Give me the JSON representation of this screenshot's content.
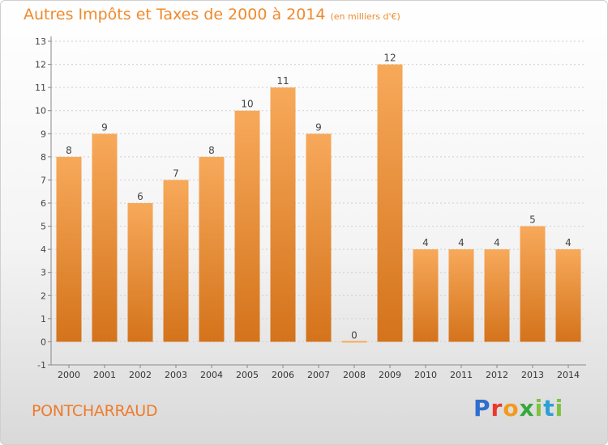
{
  "title": {
    "main": "Autres Impôts et Taxes de 2000 à 2014",
    "sub": "(en milliers d'€)"
  },
  "location": "PONTCHARRAUD",
  "logo": {
    "text": "Proxiti"
  },
  "colors": {
    "bar_top": "#f7a95a",
    "bar_bottom": "#d4731b",
    "title": "#f08a2c",
    "axis": "#888888",
    "grid": "#d0d0d0"
  },
  "chart_data": {
    "type": "bar",
    "categories": [
      "2000",
      "2001",
      "2002",
      "2003",
      "2004",
      "2005",
      "2006",
      "2007",
      "2008",
      "2009",
      "2010",
      "2011",
      "2012",
      "2013",
      "2014"
    ],
    "values": [
      8,
      9,
      6,
      7,
      8,
      10,
      11,
      9,
      0,
      12,
      4,
      4,
      4,
      5,
      4
    ],
    "ylim": [
      -1,
      13
    ],
    "yticks": [
      -1,
      0,
      1,
      2,
      3,
      4,
      5,
      6,
      7,
      8,
      9,
      10,
      11,
      12,
      13
    ],
    "title": "Autres Impôts et Taxes de 2000 à 2014",
    "xlabel": "",
    "ylabel": "",
    "grid": true,
    "data_labels": true
  }
}
